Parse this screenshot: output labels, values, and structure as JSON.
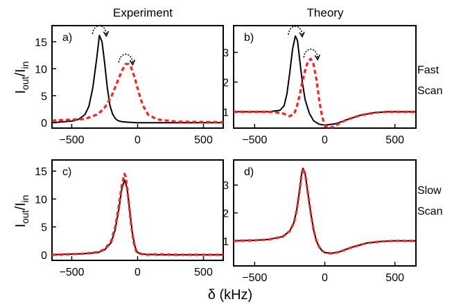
{
  "figure": {
    "column_titles": [
      "Experiment",
      "Theory"
    ],
    "row_labels": [
      [
        "Fast",
        "Scan"
      ],
      [
        "Slow",
        "Scan"
      ]
    ],
    "ylabel": {
      "main": "I",
      "sub1": "out",
      "mid": "/I",
      "sub2": "in"
    },
    "xlabel": "δ (kHz)"
  },
  "chart_data": [
    {
      "type": "line",
      "panel": "a)",
      "xlim": [
        -650,
        650
      ],
      "ylim": [
        -1,
        18
      ],
      "xticks": [
        -500,
        0,
        500
      ],
      "yticks": [
        0,
        5,
        10,
        15
      ],
      "xtick_labels": [
        "−500",
        "0",
        "500"
      ],
      "ytick_labels": [
        "0",
        "5",
        "10",
        "15"
      ],
      "series": [
        {
          "style": "solid",
          "color": "#000000",
          "x": [
            -650,
            -500,
            -450,
            -400,
            -370,
            -340,
            -310,
            -290,
            -270,
            -250,
            -230,
            -210,
            -190,
            -170,
            -150,
            -120,
            -80,
            0,
            300,
            650
          ],
          "y": [
            0.0,
            0.3,
            0.6,
            1.5,
            3.0,
            6.5,
            12.0,
            16.2,
            15.0,
            11.0,
            6.5,
            3.2,
            1.6,
            0.8,
            0.4,
            0.2,
            0.1,
            0.0,
            0.0,
            0.0
          ]
        },
        {
          "style": "dashed",
          "color": "#ff2020",
          "x": [
            -650,
            -400,
            -300,
            -250,
            -200,
            -160,
            -120,
            -90,
            -70,
            -50,
            -20,
            10,
            40,
            80,
            150,
            300,
            650
          ],
          "y": [
            0.4,
            0.7,
            1.6,
            2.8,
            4.8,
            7.2,
            9.6,
            10.9,
            10.9,
            10.3,
            8.2,
            5.5,
            3.2,
            1.5,
            0.6,
            0.2,
            0.1
          ]
        }
      ],
      "annotations": [
        "curved arrow over peak",
        "curved arrow over peak"
      ]
    },
    {
      "type": "line",
      "panel": "b)",
      "xlim": [
        -650,
        650
      ],
      "ylim": [
        0.45,
        3.9
      ],
      "xticks": [
        -500,
        0,
        500
      ],
      "yticks": [
        1,
        2,
        3
      ],
      "xtick_labels": [
        "−500",
        "0",
        "500"
      ],
      "ytick_labels": [
        "1",
        "2",
        "3"
      ],
      "series": [
        {
          "style": "solid",
          "color": "#000000",
          "x": [
            -650,
            -400,
            -320,
            -290,
            -270,
            -250,
            -230,
            -210,
            -195,
            -180,
            -160,
            -140,
            -110,
            -80,
            -40,
            0,
            80,
            150,
            250,
            350,
            450,
            550,
            650
          ],
          "y": [
            1.0,
            1.0,
            1.05,
            1.2,
            1.6,
            2.3,
            3.1,
            3.55,
            3.4,
            2.8,
            2.0,
            1.4,
            0.95,
            0.7,
            0.58,
            0.55,
            0.6,
            0.72,
            0.88,
            0.97,
            1.0,
            1.0,
            1.0
          ]
        },
        {
          "style": "dashed",
          "color": "#ff2020",
          "x": [
            -650,
            -400,
            -300,
            -250,
            -220,
            -200,
            -180,
            -160,
            -140,
            -120,
            -100,
            -80,
            -60,
            -40,
            -20,
            0,
            30,
            60,
            100,
            150,
            250,
            350,
            450,
            550,
            650
          ],
          "y": [
            1.0,
            1.0,
            0.95,
            0.85,
            0.92,
            1.15,
            1.55,
            2.0,
            2.4,
            2.7,
            2.78,
            2.6,
            2.1,
            1.4,
            0.85,
            0.55,
            0.45,
            0.5,
            0.6,
            0.72,
            0.88,
            0.97,
            1.0,
            1.0,
            1.0
          ]
        }
      ],
      "annotations": [
        "curved arrow over peak",
        "curved arrow over peak"
      ]
    },
    {
      "type": "line",
      "panel": "c)",
      "xlim": [
        -650,
        650
      ],
      "ylim": [
        -1,
        17
      ],
      "xticks": [
        -500,
        0,
        500
      ],
      "yticks": [
        0,
        5,
        10,
        15
      ],
      "xtick_labels": [
        "−500",
        "0",
        "500"
      ],
      "ytick_labels": [
        "0",
        "5",
        "10",
        "15"
      ],
      "series": [
        {
          "style": "solid",
          "color": "#000000",
          "x": [
            -650,
            -400,
            -300,
            -250,
            -200,
            -170,
            -140,
            -120,
            -100,
            -80,
            -60,
            -40,
            -20,
            0,
            50,
            150,
            300,
            650
          ],
          "y": [
            0.0,
            0.2,
            0.4,
            0.9,
            2.2,
            4.5,
            8.5,
            11.8,
            13.4,
            12.0,
            8.0,
            4.0,
            1.5,
            0.4,
            0.1,
            0.0,
            0.0,
            0.0
          ]
        },
        {
          "style": "dashed",
          "color": "#ff2020",
          "x": [
            -650,
            -400,
            -300,
            -250,
            -200,
            -170,
            -140,
            -120,
            -100,
            -90,
            -70,
            -50,
            -30,
            -10,
            10,
            60,
            150,
            300,
            650
          ],
          "y": [
            0.0,
            0.2,
            0.5,
            1.0,
            2.5,
            5.0,
            9.2,
            12.5,
            14.5,
            14.0,
            10.0,
            5.5,
            2.2,
            0.6,
            0.2,
            0.0,
            0.1,
            0.0,
            0.0
          ]
        }
      ]
    },
    {
      "type": "line",
      "panel": "d)",
      "xlim": [
        -650,
        650
      ],
      "ylim": [
        0.1,
        3.9
      ],
      "xticks": [
        -500,
        0,
        500
      ],
      "yticks": [
        1,
        2,
        3
      ],
      "xtick_labels": [
        "−500",
        "0",
        "500"
      ],
      "ytick_labels": [
        "1",
        "2",
        "3"
      ],
      "series": [
        {
          "style": "solid",
          "color": "#000000",
          "x": [
            -650,
            -500,
            -400,
            -300,
            -250,
            -220,
            -200,
            -180,
            -165,
            -155,
            -140,
            -120,
            -100,
            -80,
            -60,
            -40,
            -20,
            0,
            50,
            100,
            200,
            300,
            400,
            500,
            650
          ],
          "y": [
            1.0,
            1.02,
            1.05,
            1.15,
            1.35,
            1.65,
            2.1,
            2.8,
            3.4,
            3.6,
            3.4,
            2.7,
            2.0,
            1.4,
            1.0,
            0.78,
            0.65,
            0.58,
            0.55,
            0.6,
            0.78,
            0.92,
            0.98,
            1.0,
            1.0
          ]
        },
        {
          "style": "dashed",
          "color": "#ff2020",
          "x": [
            -650,
            -500,
            -400,
            -300,
            -250,
            -220,
            -200,
            -180,
            -165,
            -155,
            -140,
            -120,
            -100,
            -80,
            -60,
            -40,
            -20,
            0,
            50,
            100,
            200,
            300,
            400,
            500,
            650
          ],
          "y": [
            1.0,
            1.02,
            1.05,
            1.15,
            1.35,
            1.65,
            2.1,
            2.8,
            3.4,
            3.6,
            3.4,
            2.7,
            2.0,
            1.4,
            1.0,
            0.78,
            0.65,
            0.58,
            0.55,
            0.6,
            0.78,
            0.92,
            0.98,
            1.0,
            1.0
          ]
        }
      ]
    }
  ]
}
